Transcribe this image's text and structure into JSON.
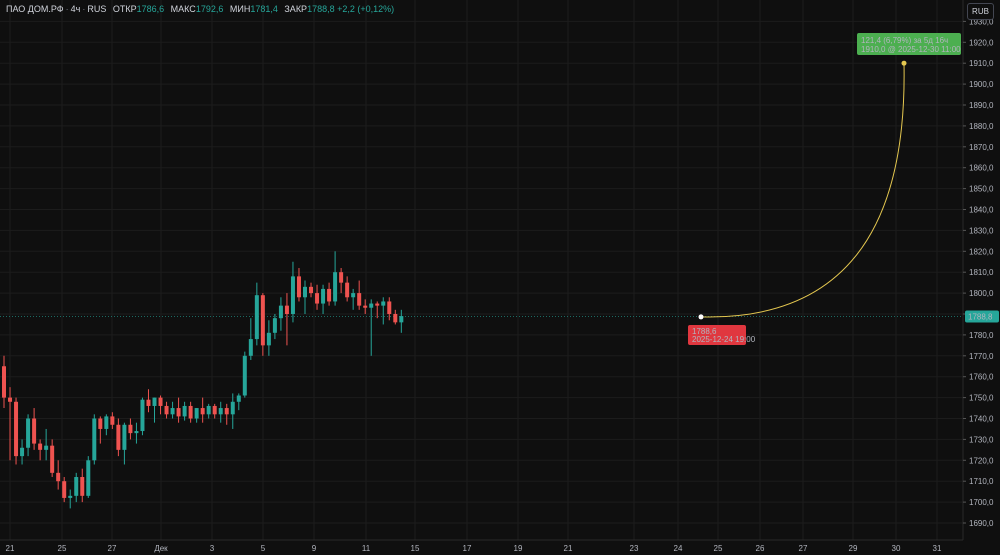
{
  "header": {
    "symbol": "ПАО ДОМ.РФ",
    "interval": "4ч",
    "exchange": "RUS",
    "open_label": "ОТКР",
    "open_value": "1786,6",
    "high_label": "МАКС",
    "high_value": "1792,6",
    "low_label": "МИН",
    "low_value": "1781,4",
    "close_label": "ЗАКР",
    "close_value": "1788,8",
    "change": "+2,2 (+0,12%)"
  },
  "currency_button": "RUB",
  "colors": {
    "up": "#26a69a",
    "down": "#ef5350",
    "curve": "#e5c850",
    "target": "#4caf50",
    "start_label": "#e0373f"
  },
  "annotations": {
    "target_title": "121,4 (6,79%) за 5д 16ч",
    "target_sub": "1910,0 @ 2025-12-30 11:00",
    "start_value": "1788,6",
    "start_time": "2025-12-24 19:00",
    "last_price": "1788,8"
  },
  "chart_data": {
    "type": "candlestick",
    "yaxis_ticks": [
      "1690,0",
      "1700,0",
      "1710,0",
      "1720,0",
      "1730,0",
      "1740,0",
      "1750,0",
      "1760,0",
      "1770,0",
      "1780,0",
      "1790,0",
      "1800,0",
      "1810,0",
      "1820,0",
      "1830,0",
      "1840,0",
      "1850,0",
      "1860,0",
      "1870,0",
      "1880,0",
      "1890,0",
      "1900,0",
      "1910,0",
      "1920,0",
      "1930,0"
    ],
    "xaxis_ticks": [
      "21",
      "25",
      "27",
      "Дек",
      "3",
      "5",
      "9",
      "11",
      "15",
      "17",
      "19",
      "21",
      "23",
      "24",
      "25",
      "26",
      "27",
      "29",
      "30",
      "31"
    ],
    "ylim": [
      1685,
      1932
    ],
    "series": [
      {
        "o": 1765,
        "h": 1770,
        "l": 1745,
        "c": 1750
      },
      {
        "o": 1750,
        "h": 1755,
        "l": 1720,
        "c": 1748
      },
      {
        "o": 1748,
        "h": 1750,
        "l": 1718,
        "c": 1722
      },
      {
        "o": 1722,
        "h": 1730,
        "l": 1718,
        "c": 1726
      },
      {
        "o": 1726,
        "h": 1742,
        "l": 1722,
        "c": 1740
      },
      {
        "o": 1740,
        "h": 1745,
        "l": 1725,
        "c": 1728
      },
      {
        "o": 1728,
        "h": 1730,
        "l": 1720,
        "c": 1725
      },
      {
        "o": 1725,
        "h": 1735,
        "l": 1720,
        "c": 1727
      },
      {
        "o": 1727,
        "h": 1730,
        "l": 1712,
        "c": 1714
      },
      {
        "o": 1714,
        "h": 1720,
        "l": 1706,
        "c": 1710
      },
      {
        "o": 1710,
        "h": 1712,
        "l": 1700,
        "c": 1702
      },
      {
        "o": 1702,
        "h": 1706,
        "l": 1697,
        "c": 1703
      },
      {
        "o": 1703,
        "h": 1714,
        "l": 1700,
        "c": 1712
      },
      {
        "o": 1712,
        "h": 1716,
        "l": 1700,
        "c": 1703
      },
      {
        "o": 1703,
        "h": 1722,
        "l": 1702,
        "c": 1720
      },
      {
        "o": 1720,
        "h": 1742,
        "l": 1718,
        "c": 1740
      },
      {
        "o": 1740,
        "h": 1741,
        "l": 1728,
        "c": 1735
      },
      {
        "o": 1735,
        "h": 1742,
        "l": 1732,
        "c": 1741
      },
      {
        "o": 1741,
        "h": 1743,
        "l": 1735,
        "c": 1737
      },
      {
        "o": 1737,
        "h": 1740,
        "l": 1722,
        "c": 1725
      },
      {
        "o": 1725,
        "h": 1738,
        "l": 1718,
        "c": 1737
      },
      {
        "o": 1737,
        "h": 1740,
        "l": 1730,
        "c": 1733
      },
      {
        "o": 1733,
        "h": 1738,
        "l": 1728,
        "c": 1734
      },
      {
        "o": 1734,
        "h": 1750,
        "l": 1732,
        "c": 1749
      },
      {
        "o": 1749,
        "h": 1754,
        "l": 1743,
        "c": 1746
      },
      {
        "o": 1746,
        "h": 1750,
        "l": 1738,
        "c": 1750
      },
      {
        "o": 1750,
        "h": 1751,
        "l": 1742,
        "c": 1746
      },
      {
        "o": 1746,
        "h": 1748,
        "l": 1740,
        "c": 1742
      },
      {
        "o": 1742,
        "h": 1748,
        "l": 1740,
        "c": 1745
      },
      {
        "o": 1745,
        "h": 1750,
        "l": 1738,
        "c": 1741
      },
      {
        "o": 1741,
        "h": 1748,
        "l": 1739,
        "c": 1746
      },
      {
        "o": 1746,
        "h": 1748,
        "l": 1738,
        "c": 1740
      },
      {
        "o": 1740,
        "h": 1745,
        "l": 1738,
        "c": 1745
      },
      {
        "o": 1745,
        "h": 1750,
        "l": 1738,
        "c": 1742
      },
      {
        "o": 1742,
        "h": 1747,
        "l": 1740,
        "c": 1746
      },
      {
        "o": 1746,
        "h": 1747,
        "l": 1740,
        "c": 1742
      },
      {
        "o": 1742,
        "h": 1748,
        "l": 1738,
        "c": 1745
      },
      {
        "o": 1745,
        "h": 1747,
        "l": 1737,
        "c": 1742
      },
      {
        "o": 1742,
        "h": 1752,
        "l": 1735,
        "c": 1748
      },
      {
        "o": 1748,
        "h": 1752,
        "l": 1744,
        "c": 1751
      },
      {
        "o": 1751,
        "h": 1772,
        "l": 1750,
        "c": 1770
      },
      {
        "o": 1770,
        "h": 1788,
        "l": 1768,
        "c": 1778
      },
      {
        "o": 1778,
        "h": 1805,
        "l": 1775,
        "c": 1799
      },
      {
        "o": 1799,
        "h": 1800,
        "l": 1770,
        "c": 1775
      },
      {
        "o": 1775,
        "h": 1787,
        "l": 1770,
        "c": 1781
      },
      {
        "o": 1781,
        "h": 1790,
        "l": 1778,
        "c": 1788
      },
      {
        "o": 1788,
        "h": 1798,
        "l": 1782,
        "c": 1794
      },
      {
        "o": 1794,
        "h": 1800,
        "l": 1775,
        "c": 1790
      },
      {
        "o": 1790,
        "h": 1815,
        "l": 1786,
        "c": 1808
      },
      {
        "o": 1808,
        "h": 1812,
        "l": 1796,
        "c": 1798
      },
      {
        "o": 1798,
        "h": 1806,
        "l": 1790,
        "c": 1803
      },
      {
        "o": 1803,
        "h": 1805,
        "l": 1798,
        "c": 1800
      },
      {
        "o": 1800,
        "h": 1804,
        "l": 1792,
        "c": 1795
      },
      {
        "o": 1795,
        "h": 1804,
        "l": 1790,
        "c": 1802
      },
      {
        "o": 1802,
        "h": 1805,
        "l": 1794,
        "c": 1796
      },
      {
        "o": 1796,
        "h": 1820,
        "l": 1794,
        "c": 1810
      },
      {
        "o": 1810,
        "h": 1812,
        "l": 1800,
        "c": 1805
      },
      {
        "o": 1805,
        "h": 1808,
        "l": 1796,
        "c": 1798
      },
      {
        "o": 1798,
        "h": 1802,
        "l": 1792,
        "c": 1800
      },
      {
        "o": 1800,
        "h": 1806,
        "l": 1792,
        "c": 1794
      },
      {
        "o": 1794,
        "h": 1797,
        "l": 1790,
        "c": 1793
      },
      {
        "o": 1793,
        "h": 1797,
        "l": 1770,
        "c": 1795
      },
      {
        "o": 1795,
        "h": 1796,
        "l": 1788,
        "c": 1794
      },
      {
        "o": 1794,
        "h": 1798,
        "l": 1785,
        "c": 1796
      },
      {
        "o": 1796,
        "h": 1798,
        "l": 1787,
        "c": 1790
      },
      {
        "o": 1790,
        "h": 1792,
        "l": 1785,
        "c": 1786
      },
      {
        "o": 1786,
        "h": 1792,
        "l": 1781,
        "c": 1789
      }
    ]
  }
}
